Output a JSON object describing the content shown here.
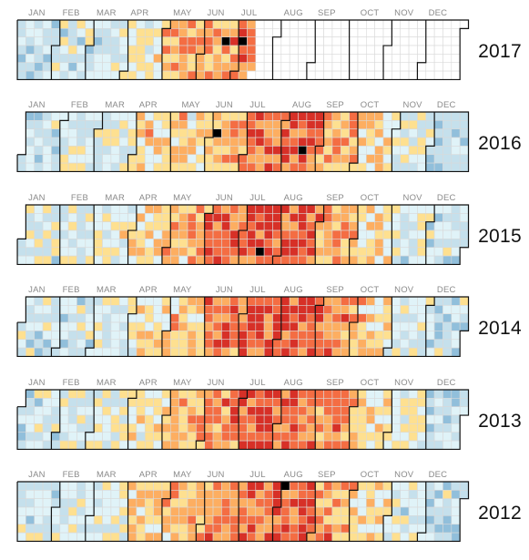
{
  "chart_data": {
    "type": "heatmap",
    "title": "",
    "layout": "calendar",
    "months": [
      "JAN",
      "FEB",
      "MAR",
      "APR",
      "MAY",
      "JUN",
      "JUL",
      "AUG",
      "SEP",
      "OCT",
      "NOV",
      "DEC"
    ],
    "color_scale": {
      "levels": [
        0,
        1,
        2,
        3,
        4,
        5,
        6,
        7,
        8
      ],
      "colors": [
        "#4575b4",
        "#91bfdb",
        "#c5e0ec",
        "#e0f3f8",
        "#fee090",
        "#fdae61",
        "#f46d43",
        "#d73027",
        "#000000"
      ],
      "missing": "#ffffff"
    },
    "years": [
      {
        "year": "2017",
        "through_day": 195,
        "monthly_level": [
          1.9,
          2.5,
          2.4,
          3.6,
          4.6,
          5.2,
          5.8,
          null,
          null,
          null,
          null,
          null
        ],
        "black_days": [
          170,
          184
        ]
      },
      {
        "year": "2016",
        "through_day": 366,
        "monthly_level": [
          2.4,
          2.8,
          2.8,
          4.3,
          4.0,
          4.9,
          5.8,
          6.2,
          5.1,
          4.0,
          3.0,
          1.8
        ],
        "black_days": [
          158,
          230
        ]
      },
      {
        "year": "2015",
        "through_day": 365,
        "monthly_level": [
          2.7,
          2.9,
          3.3,
          4.0,
          4.8,
          5.8,
          6.4,
          6.3,
          5.0,
          4.1,
          2.8,
          2.4
        ],
        "black_days": [
          197
        ]
      },
      {
        "year": "2014",
        "through_day": 365,
        "monthly_level": [
          2.5,
          2.2,
          3.0,
          3.7,
          4.7,
          5.7,
          6.3,
          6.5,
          5.6,
          4.2,
          2.9,
          2.2
        ],
        "black_days": []
      },
      {
        "year": "2013",
        "through_day": 365,
        "monthly_level": [
          2.5,
          2.7,
          3.1,
          3.8,
          4.7,
          5.4,
          6.2,
          5.9,
          5.4,
          4.0,
          2.9,
          2.2
        ],
        "black_days": []
      },
      {
        "year": "2012",
        "through_day": 366,
        "monthly_level": [
          2.6,
          2.7,
          3.2,
          4.3,
          4.7,
          5.4,
          6.2,
          6.3,
          5.1,
          4.0,
          2.9,
          2.3
        ],
        "black_days": [
          217
        ]
      }
    ]
  }
}
